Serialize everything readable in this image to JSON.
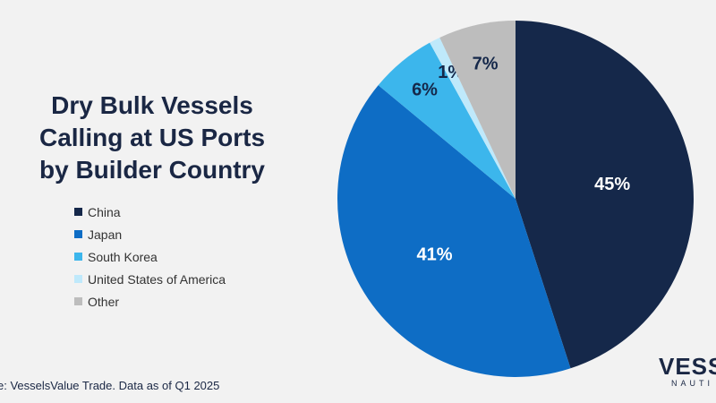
{
  "title_lines": [
    "Dry Bulk Vessels",
    "Calling at US Ports",
    "by Builder Country"
  ],
  "source": "e: VesselsValue Trade. Data as of Q1 2025",
  "logo": {
    "main": "VESS",
    "sub": "NAUTI"
  },
  "chart_data": {
    "type": "pie",
    "title": "Dry Bulk Vessels Calling at US Ports by Builder Country",
    "legend_position": "left",
    "slices": [
      {
        "label": "China",
        "value": 45,
        "display": "45%",
        "color": "#15284a",
        "text_color": "#ffffff"
      },
      {
        "label": "Japan",
        "value": 41,
        "display": "41%",
        "color": "#0e6dc5",
        "text_color": "#ffffff"
      },
      {
        "label": "South Korea",
        "value": 6,
        "display": "6%",
        "color": "#3cb6ec",
        "text_color": "#15284a"
      },
      {
        "label": "United States of America",
        "value": 1,
        "display": "1%",
        "color": "#bfe9fb",
        "text_color": "#15284a"
      },
      {
        "label": "Other",
        "value": 7,
        "display": "7%",
        "color": "#bdbdbd",
        "text_color": "#15284a"
      }
    ]
  }
}
